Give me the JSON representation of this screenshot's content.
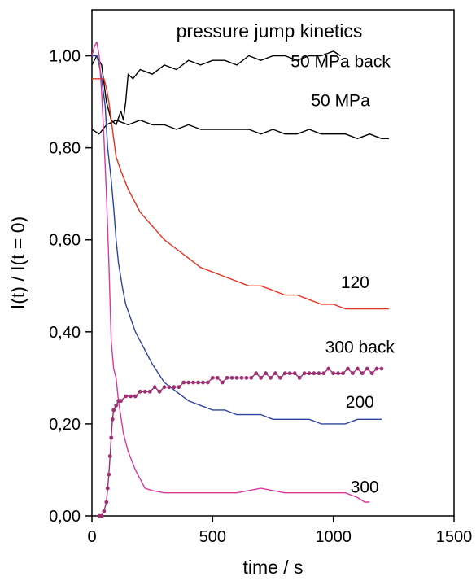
{
  "chart_data": {
    "type": "line",
    "title": "pressure jump kinetics",
    "xlabel": "time / s",
    "ylabel": "I(t) / I(t = 0)",
    "xlim": [
      0,
      1500
    ],
    "ylim": [
      0,
      1.1
    ],
    "xticks": [
      0,
      500,
      1000,
      1500
    ],
    "xtick_labels": [
      "0",
      "500",
      "1000",
      "1500"
    ],
    "yticks": [
      0,
      0.2,
      0.4,
      0.6,
      0.8,
      1.0
    ],
    "ytick_labels": [
      "0,00",
      "0,20",
      "0,40",
      "0,60",
      "0,80",
      "1,00"
    ],
    "grid": false,
    "legend": "none",
    "series": [
      {
        "name": "50 MPa back",
        "color": "#000000",
        "marker": "none",
        "points": [
          [
            0,
            0.98
          ],
          [
            20,
            1.0
          ],
          [
            40,
            0.98
          ],
          [
            60,
            0.9
          ],
          [
            80,
            0.86
          ],
          [
            100,
            0.85
          ],
          [
            120,
            0.88
          ],
          [
            130,
            0.86
          ],
          [
            140,
            0.9
          ],
          [
            150,
            0.96
          ],
          [
            170,
            0.95
          ],
          [
            200,
            0.97
          ],
          [
            250,
            0.96
          ],
          [
            300,
            0.98
          ],
          [
            350,
            0.97
          ],
          [
            400,
            0.99
          ],
          [
            450,
            0.98
          ],
          [
            500,
            0.99
          ],
          [
            550,
            0.99
          ],
          [
            600,
            0.98
          ],
          [
            650,
            1.0
          ],
          [
            700,
            0.99
          ],
          [
            750,
            1.0
          ],
          [
            800,
            1.0
          ],
          [
            850,
            0.99
          ],
          [
            900,
            1.0
          ],
          [
            950,
            1.0
          ],
          [
            1000,
            1.01
          ],
          [
            1030,
            1.0
          ]
        ]
      },
      {
        "name": "50 MPa",
        "color": "#000000",
        "marker": "none",
        "points": [
          [
            0,
            0.84
          ],
          [
            30,
            0.83
          ],
          [
            60,
            0.85
          ],
          [
            100,
            0.86
          ],
          [
            150,
            0.85
          ],
          [
            200,
            0.86
          ],
          [
            250,
            0.85
          ],
          [
            300,
            0.85
          ],
          [
            350,
            0.84
          ],
          [
            400,
            0.85
          ],
          [
            450,
            0.84
          ],
          [
            500,
            0.84
          ],
          [
            550,
            0.84
          ],
          [
            600,
            0.84
          ],
          [
            650,
            0.84
          ],
          [
            700,
            0.83
          ],
          [
            750,
            0.84
          ],
          [
            800,
            0.83
          ],
          [
            850,
            0.83
          ],
          [
            900,
            0.84
          ],
          [
            950,
            0.83
          ],
          [
            1000,
            0.83
          ],
          [
            1050,
            0.83
          ],
          [
            1100,
            0.82
          ],
          [
            1150,
            0.83
          ],
          [
            1200,
            0.82
          ],
          [
            1230,
            0.82
          ]
        ]
      },
      {
        "name": "120",
        "color": "#e8301e",
        "marker": "none",
        "points": [
          [
            0,
            0.95
          ],
          [
            30,
            0.95
          ],
          [
            50,
            0.95
          ],
          [
            60,
            0.93
          ],
          [
            70,
            0.9
          ],
          [
            85,
            0.84
          ],
          [
            100,
            0.78
          ],
          [
            120,
            0.75
          ],
          [
            150,
            0.71
          ],
          [
            180,
            0.68
          ],
          [
            200,
            0.66
          ],
          [
            250,
            0.63
          ],
          [
            300,
            0.6
          ],
          [
            350,
            0.58
          ],
          [
            400,
            0.56
          ],
          [
            450,
            0.54
          ],
          [
            500,
            0.53
          ],
          [
            550,
            0.52
          ],
          [
            600,
            0.51
          ],
          [
            650,
            0.5
          ],
          [
            700,
            0.5
          ],
          [
            750,
            0.49
          ],
          [
            800,
            0.48
          ],
          [
            850,
            0.48
          ],
          [
            900,
            0.47
          ],
          [
            950,
            0.46
          ],
          [
            1000,
            0.46
          ],
          [
            1050,
            0.45
          ],
          [
            1100,
            0.45
          ],
          [
            1150,
            0.45
          ],
          [
            1200,
            0.45
          ],
          [
            1230,
            0.45
          ]
        ]
      },
      {
        "name": "200",
        "color": "#2e43a0",
        "marker": "none",
        "points": [
          [
            0,
            1.0
          ],
          [
            20,
            1.0
          ],
          [
            30,
            0.98
          ],
          [
            40,
            0.95
          ],
          [
            55,
            0.89
          ],
          [
            65,
            0.8
          ],
          [
            80,
            0.73
          ],
          [
            90,
            0.67
          ],
          [
            100,
            0.6
          ],
          [
            110,
            0.55
          ],
          [
            125,
            0.5
          ],
          [
            140,
            0.46
          ],
          [
            160,
            0.43
          ],
          [
            180,
            0.4
          ],
          [
            200,
            0.38
          ],
          [
            250,
            0.33
          ],
          [
            300,
            0.29
          ],
          [
            350,
            0.27
          ],
          [
            400,
            0.25
          ],
          [
            450,
            0.24
          ],
          [
            500,
            0.23
          ],
          [
            550,
            0.23
          ],
          [
            600,
            0.22
          ],
          [
            650,
            0.22
          ],
          [
            700,
            0.22
          ],
          [
            750,
            0.21
          ],
          [
            800,
            0.21
          ],
          [
            850,
            0.21
          ],
          [
            900,
            0.21
          ],
          [
            950,
            0.2
          ],
          [
            1000,
            0.2
          ],
          [
            1050,
            0.2
          ],
          [
            1100,
            0.21
          ],
          [
            1150,
            0.21
          ],
          [
            1200,
            0.21
          ]
        ]
      },
      {
        "name": "300",
        "color": "#d93a9c",
        "marker": "none",
        "points": [
          [
            0,
            1.0
          ],
          [
            10,
            1.02
          ],
          [
            20,
            1.03
          ],
          [
            30,
            1.0
          ],
          [
            40,
            0.92
          ],
          [
            50,
            0.82
          ],
          [
            60,
            0.7
          ],
          [
            70,
            0.55
          ],
          [
            80,
            0.38
          ],
          [
            90,
            0.32
          ],
          [
            100,
            0.3
          ],
          [
            110,
            0.25
          ],
          [
            130,
            0.18
          ],
          [
            150,
            0.14
          ],
          [
            180,
            0.1
          ],
          [
            200,
            0.08
          ],
          [
            220,
            0.06
          ],
          [
            250,
            0.055
          ],
          [
            300,
            0.05
          ],
          [
            350,
            0.05
          ],
          [
            400,
            0.05
          ],
          [
            500,
            0.05
          ],
          [
            600,
            0.05
          ],
          [
            700,
            0.06
          ],
          [
            800,
            0.05
          ],
          [
            900,
            0.05
          ],
          [
            1000,
            0.05
          ],
          [
            1050,
            0.05
          ],
          [
            1100,
            0.04
          ],
          [
            1130,
            0.03
          ],
          [
            1150,
            0.03
          ]
        ]
      },
      {
        "name": "300 back",
        "color": "#9e2f72",
        "marker": "circle",
        "points": [
          [
            30,
            0.0
          ],
          [
            40,
            0.0
          ],
          [
            50,
            0.01
          ],
          [
            60,
            0.03
          ],
          [
            65,
            0.06
          ],
          [
            70,
            0.09
          ],
          [
            75,
            0.13
          ],
          [
            80,
            0.17
          ],
          [
            85,
            0.21
          ],
          [
            90,
            0.23
          ],
          [
            100,
            0.24
          ],
          [
            110,
            0.25
          ],
          [
            120,
            0.25
          ],
          [
            140,
            0.26
          ],
          [
            160,
            0.26
          ],
          [
            180,
            0.26
          ],
          [
            200,
            0.27
          ],
          [
            220,
            0.27
          ],
          [
            240,
            0.27
          ],
          [
            260,
            0.28
          ],
          [
            280,
            0.27
          ],
          [
            300,
            0.28
          ],
          [
            320,
            0.28
          ],
          [
            340,
            0.28
          ],
          [
            360,
            0.28
          ],
          [
            380,
            0.29
          ],
          [
            400,
            0.29
          ],
          [
            420,
            0.29
          ],
          [
            440,
            0.29
          ],
          [
            460,
            0.29
          ],
          [
            480,
            0.29
          ],
          [
            500,
            0.3
          ],
          [
            520,
            0.3
          ],
          [
            540,
            0.29
          ],
          [
            560,
            0.3
          ],
          [
            580,
            0.3
          ],
          [
            600,
            0.3
          ],
          [
            620,
            0.3
          ],
          [
            640,
            0.3
          ],
          [
            660,
            0.3
          ],
          [
            680,
            0.31
          ],
          [
            700,
            0.3
          ],
          [
            720,
            0.31
          ],
          [
            740,
            0.3
          ],
          [
            760,
            0.31
          ],
          [
            780,
            0.3
          ],
          [
            800,
            0.31
          ],
          [
            820,
            0.31
          ],
          [
            840,
            0.31
          ],
          [
            860,
            0.3
          ],
          [
            880,
            0.31
          ],
          [
            900,
            0.31
          ],
          [
            920,
            0.31
          ],
          [
            940,
            0.31
          ],
          [
            960,
            0.31
          ],
          [
            980,
            0.32
          ],
          [
            1000,
            0.31
          ],
          [
            1020,
            0.31
          ],
          [
            1040,
            0.31
          ],
          [
            1060,
            0.32
          ],
          [
            1080,
            0.31
          ],
          [
            1100,
            0.32
          ],
          [
            1120,
            0.31
          ],
          [
            1140,
            0.32
          ],
          [
            1160,
            0.31
          ],
          [
            1180,
            0.32
          ],
          [
            1200,
            0.32
          ]
        ]
      }
    ],
    "annotations": [
      {
        "text": "50 MPa back",
        "x": 1030,
        "y": 0.975
      },
      {
        "text": "50 MPa",
        "x": 1030,
        "y": 0.89
      },
      {
        "text": "120",
        "x": 1090,
        "y": 0.495
      },
      {
        "text": "300 back",
        "x": 1110,
        "y": 0.355
      },
      {
        "text": "200",
        "x": 1110,
        "y": 0.235
      },
      {
        "text": "300",
        "x": 1130,
        "y": 0.05
      }
    ]
  }
}
